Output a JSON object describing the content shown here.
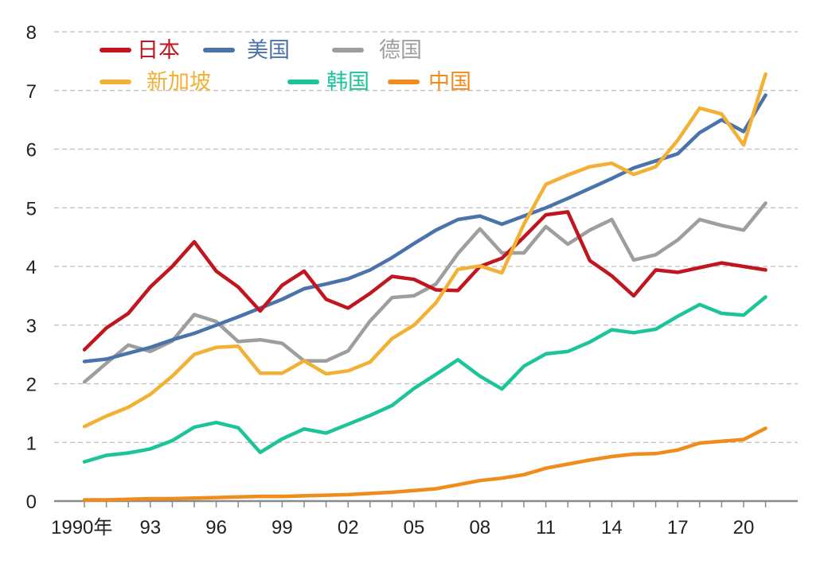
{
  "chart_data": {
    "type": "line",
    "title": "",
    "xlabel": "",
    "ylabel": "",
    "ylim": [
      0,
      8
    ],
    "yticks": [
      "0",
      "1",
      "2",
      "3",
      "4",
      "5",
      "6",
      "7",
      "8"
    ],
    "x": [
      1990,
      1991,
      1992,
      1993,
      1994,
      1995,
      1996,
      1997,
      1998,
      1999,
      2000,
      2001,
      2002,
      2003,
      2004,
      2005,
      2006,
      2007,
      2008,
      2009,
      2010,
      2011,
      2012,
      2013,
      2014,
      2015,
      2016,
      2017,
      2018,
      2019,
      2020,
      2021
    ],
    "xticks": [
      {
        "x": 1990,
        "label": "1990年"
      },
      {
        "x": 1993,
        "label": "93"
      },
      {
        "x": 1996,
        "label": "96"
      },
      {
        "x": 1999,
        "label": "99"
      },
      {
        "x": 2002,
        "label": "02"
      },
      {
        "x": 2005,
        "label": "05"
      },
      {
        "x": 2008,
        "label": "08"
      },
      {
        "x": 2011,
        "label": "11"
      },
      {
        "x": 2014,
        "label": "14"
      },
      {
        "x": 2017,
        "label": "17"
      },
      {
        "x": 2020,
        "label": "20"
      }
    ],
    "grid": "horizontal-dashed",
    "legend_position": "top-left",
    "series": [
      {
        "name": "日本",
        "color": "#c0161f",
        "values": [
          2.58,
          2.95,
          3.2,
          3.65,
          4.0,
          4.42,
          3.92,
          3.65,
          3.24,
          3.68,
          3.92,
          3.44,
          3.29,
          3.54,
          3.83,
          3.78,
          3.6,
          3.59,
          4.0,
          4.14,
          4.5,
          4.88,
          4.93,
          4.1,
          3.84,
          3.5,
          3.94,
          3.9,
          3.98,
          4.06,
          4.0,
          3.94
        ]
      },
      {
        "name": "美国",
        "color": "#4a72ab",
        "values": [
          2.38,
          2.42,
          2.52,
          2.62,
          2.75,
          2.86,
          3.0,
          3.14,
          3.29,
          3.44,
          3.62,
          3.7,
          3.79,
          3.94,
          4.15,
          4.39,
          4.62,
          4.8,
          4.86,
          4.72,
          4.86,
          5.0,
          5.16,
          5.33,
          5.5,
          5.68,
          5.8,
          5.92,
          6.28,
          6.5,
          6.3,
          6.92
        ]
      },
      {
        "name": "德国",
        "color": "#9e9e9e",
        "values": [
          2.03,
          2.35,
          2.66,
          2.55,
          2.73,
          3.18,
          3.06,
          2.72,
          2.75,
          2.69,
          2.39,
          2.39,
          2.56,
          3.07,
          3.47,
          3.5,
          3.7,
          4.22,
          4.64,
          4.23,
          4.23,
          4.68,
          4.38,
          4.62,
          4.8,
          4.11,
          4.2,
          4.45,
          4.8,
          4.7,
          4.62,
          5.08
        ]
      },
      {
        "name": "新加坡",
        "color": "#f2b134",
        "values": [
          1.27,
          1.45,
          1.6,
          1.82,
          2.13,
          2.5,
          2.62,
          2.64,
          2.18,
          2.18,
          2.39,
          2.17,
          2.22,
          2.37,
          2.77,
          3.0,
          3.38,
          3.95,
          4.01,
          3.89,
          4.72,
          5.4,
          5.56,
          5.7,
          5.76,
          5.57,
          5.7,
          6.15,
          6.7,
          6.6,
          6.07,
          7.28
        ]
      },
      {
        "name": "韩国",
        "color": "#1dc49a",
        "values": [
          0.67,
          0.78,
          0.82,
          0.89,
          1.03,
          1.26,
          1.34,
          1.25,
          0.83,
          1.06,
          1.23,
          1.16,
          1.31,
          1.46,
          1.63,
          1.92,
          2.16,
          2.41,
          2.13,
          1.91,
          2.3,
          2.51,
          2.55,
          2.71,
          2.92,
          2.87,
          2.93,
          3.15,
          3.35,
          3.2,
          3.17,
          3.48
        ]
      },
      {
        "name": "中国",
        "color": "#f08c1c",
        "values": [
          0.02,
          0.02,
          0.03,
          0.04,
          0.04,
          0.05,
          0.06,
          0.07,
          0.08,
          0.08,
          0.09,
          0.1,
          0.11,
          0.13,
          0.15,
          0.18,
          0.21,
          0.28,
          0.35,
          0.39,
          0.45,
          0.56,
          0.63,
          0.7,
          0.76,
          0.8,
          0.81,
          0.87,
          0.99,
          1.02,
          1.05,
          1.24
        ]
      }
    ]
  }
}
